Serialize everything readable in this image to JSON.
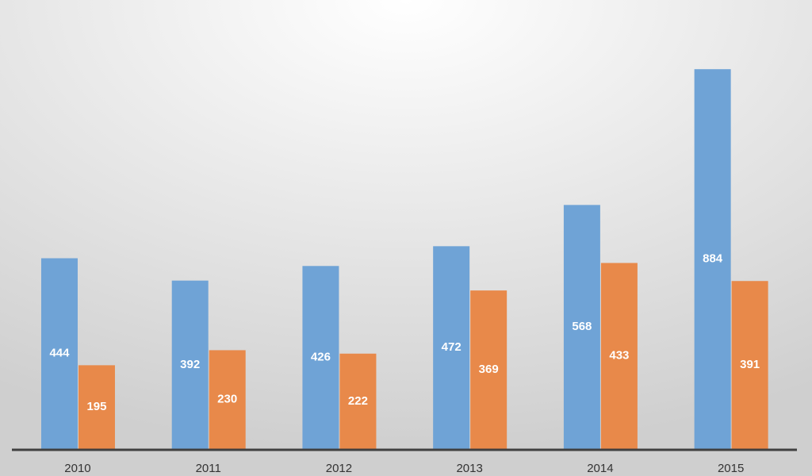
{
  "chart_data": {
    "type": "bar",
    "categories": [
      "2010",
      "2011",
      "2012",
      "2013",
      "2014",
      "2015"
    ],
    "series": [
      {
        "color": "#6fa3d6",
        "values": [
          444,
          392,
          426,
          472,
          568,
          884
        ]
      },
      {
        "color": "#e8894a",
        "values": [
          195,
          230,
          222,
          369,
          433,
          391
        ]
      }
    ],
    "ylim": [
      0,
      1045
    ]
  }
}
